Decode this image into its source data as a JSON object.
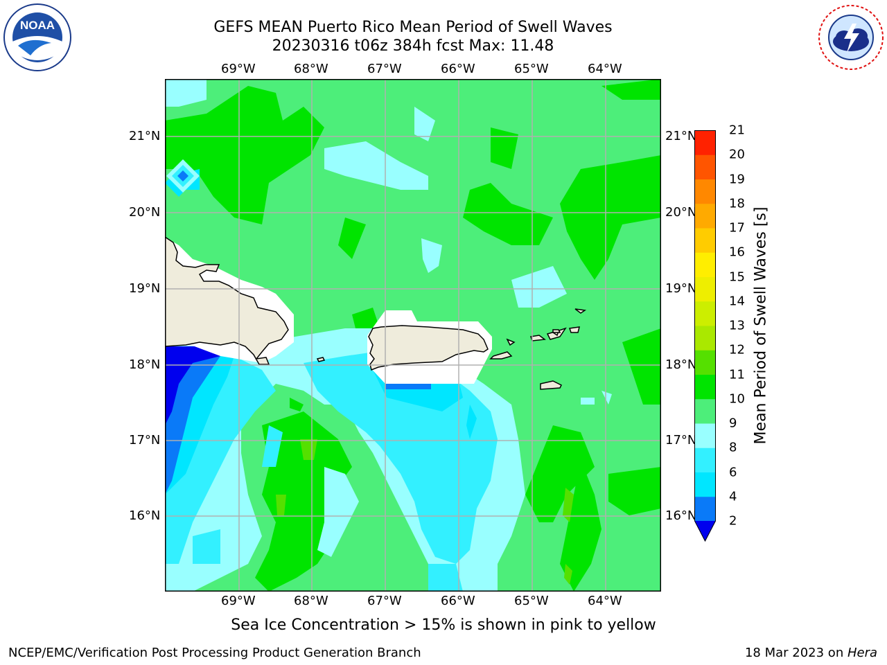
{
  "title_line1": "GEFS MEAN Puerto Rico Mean Period of Swell Waves",
  "title_line2": "20230316 t06z 384h fcst   Max: 11.48",
  "logos": {
    "left": "NOAA",
    "left_ring_text": "NATIONAL OCEANIC AND ATMOSPHERIC ADMINISTRATION · U.S. DEPARTMENT OF COMMERCE",
    "right_ring_text": "NATIONAL WEATHER SERVICE"
  },
  "map": {
    "lon_labels": [
      "69°W",
      "68°W",
      "67°W",
      "66°W",
      "65°W",
      "64°W"
    ],
    "lat_labels": [
      "21°N",
      "20°N",
      "19°N",
      "18°N",
      "17°N",
      "16°N"
    ],
    "colors": {
      "c2_4": "#0a7af8",
      "c4_6": "#00e6ff",
      "c6_8": "#33f0ff",
      "c8_9": "#99ffff",
      "c9_10": "#4dee7a",
      "c10_11": "#00e400",
      "c11_12": "#55e000",
      "under": "#0000ee",
      "land": "#efecdc",
      "nodata": "#ffffff"
    }
  },
  "colorbar": {
    "title": "Mean Period of Swell Waves [s]",
    "ticks": [
      "2",
      "4",
      "6",
      "8",
      "9",
      "10",
      "11",
      "12",
      "13",
      "14",
      "15",
      "16",
      "17",
      "18",
      "19",
      "20",
      "21"
    ],
    "colors": [
      "#0a7af8",
      "#00e6ff",
      "#33f0ff",
      "#99ffff",
      "#4dee7a",
      "#00e400",
      "#55e000",
      "#aae800",
      "#ccee00",
      "#eeee00",
      "#ffee00",
      "#ffcc00",
      "#ffaa00",
      "#ff8800",
      "#ff5500",
      "#ff2200",
      "#ff0000"
    ],
    "under_color": "#0000ee"
  },
  "note": "Sea Ice Concentration > 15% is shown in pink to yellow",
  "footer_left": "NCEP/EMC/Verification Post Processing Product Generation Branch",
  "footer_right_prefix": "18 Mar 2023 on ",
  "footer_right_host": "Hera"
}
